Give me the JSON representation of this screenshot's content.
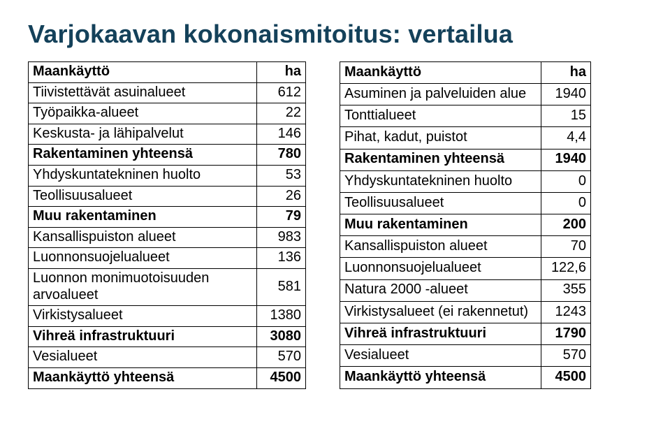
{
  "title": "Varjokaavan kokonaismitoitus: vertailua",
  "left": {
    "header": {
      "label": "Maankäyttö",
      "val": "ha"
    },
    "rows": [
      {
        "label": "Tiivistettävät asuinalueet",
        "val": "612",
        "bold": false
      },
      {
        "label": "Työpaikka-alueet",
        "val": "22",
        "bold": false
      },
      {
        "label": "Keskusta- ja lähipalvelut",
        "val": "146",
        "bold": false
      },
      {
        "label": "Rakentaminen yhteensä",
        "val": "780",
        "bold": true
      },
      {
        "label": "Yhdyskuntatekninen huolto",
        "val": "53",
        "bold": false
      },
      {
        "label": "Teollisuusalueet",
        "val": "26",
        "bold": false
      },
      {
        "label": "Muu rakentaminen",
        "val": "79",
        "bold": true
      },
      {
        "label": "Kansallispuiston alueet",
        "val": "983",
        "bold": false
      },
      {
        "label": "Luonnonsuojelualueet",
        "val": "136",
        "bold": false
      },
      {
        "label": "Luonnon monimuotoisuuden arvoalueet",
        "val": "581",
        "bold": false
      },
      {
        "label": "Virkistysalueet",
        "val": "1380",
        "bold": false
      },
      {
        "label": "Vihreä infrastruktuuri",
        "val": "3080",
        "bold": true
      },
      {
        "label": "Vesialueet",
        "val": "570",
        "bold": false
      },
      {
        "label": "Maankäyttö yhteensä",
        "val": "4500",
        "bold": true
      }
    ]
  },
  "right": {
    "header": {
      "label": "Maankäyttö",
      "val": "ha"
    },
    "rows": [
      {
        "label": "Asuminen ja palveluiden alue",
        "val": "1940",
        "bold": false
      },
      {
        "label": "Tonttialueet",
        "val": "15",
        "bold": false
      },
      {
        "label": "Pihat, kadut, puistot",
        "val": "4,4",
        "bold": false
      },
      {
        "label": "Rakentaminen yhteensä",
        "val": "1940",
        "bold": true
      },
      {
        "label": "Yhdyskuntatekninen huolto",
        "val": "0",
        "bold": false
      },
      {
        "label": "Teollisuusalueet",
        "val": "0",
        "bold": false
      },
      {
        "label": "Muu rakentaminen",
        "val": "200",
        "bold": true
      },
      {
        "label": "Kansallispuiston alueet",
        "val": "70",
        "bold": false
      },
      {
        "label": "Luonnonsuojelualueet",
        "val": "122,6",
        "bold": false
      },
      {
        "label": "Natura 2000 -alueet",
        "val": "355",
        "bold": false
      },
      {
        "label": "Virkistysalueet (ei rakennetut)",
        "val": "1243",
        "bold": false
      },
      {
        "label": "Vihreä infrastruktuuri",
        "val": "1790",
        "bold": true
      },
      {
        "label": "Vesialueet",
        "val": "570",
        "bold": false
      },
      {
        "label": "Maankäyttö yhteensä",
        "val": "4500",
        "bold": true
      }
    ]
  }
}
